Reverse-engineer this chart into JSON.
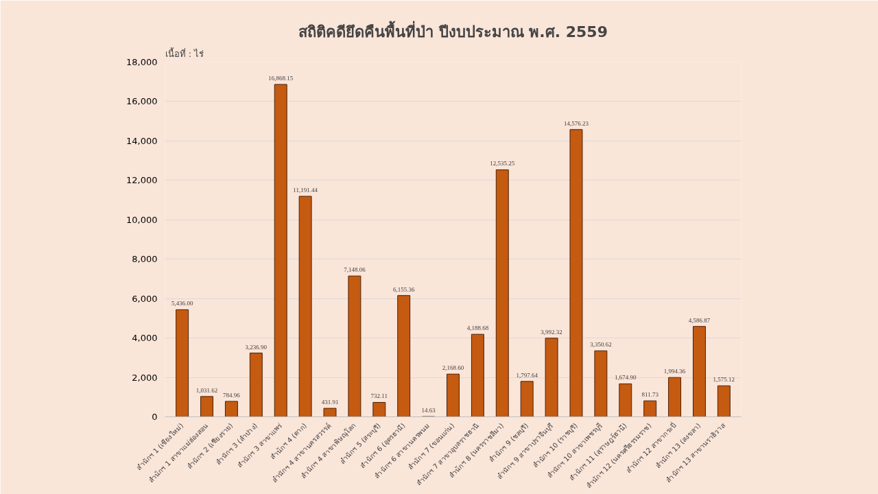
{
  "chart_data": {
    "type": "bar",
    "title": "สถิติคดียึดคืนพื้นที่ป่า ปีงบประมาณ พ.ศ. 2559",
    "ylabel": "เนื้อที่ : ไร่",
    "categories": [
      "สำนักฯ 1 (เชียงใหม่)",
      "สำนักฯ 1 สาขาแม่ฮ่องสอน",
      "สำนักฯ 2 (เชียงราย)",
      "สำนักฯ 3 (ลำปาง)",
      "สำนักฯ 3 สาขาแพร่",
      "สำนักฯ 4 (ตาก)",
      "สำนักฯ 4 สาขานครสวรรค์",
      "สำนักฯ 4 สาขาพิษณุโลก",
      "สำนักฯ 5 (สระบุรี)",
      "สำนักฯ 6 (อุดรธานี)",
      "สำนักฯ 6 สาขานครพนม",
      "สำนักฯ 7 (ขอนแก่น)",
      "สำนักฯ 7 สาขาอุบลราชธานี",
      "สำนักฯ 8 (นครราชสีมา)",
      "สำนักฯ 9 (ชลบุรี)",
      "สำนักฯ 9 สาขาปราจีนบุรี",
      "สำนักฯ 10 (ราชบุรี)",
      "สำนักฯ 10 สาขาเพชรบุรี",
      "สำนักฯ 11 (สุราษฎร์ธานี)",
      "สำนักฯ 12 (นครศรีธรรมราช)",
      "สำนักฯ 12 สาขากระบี่",
      "สำนักฯ 13 (สงขลา)",
      "สำนักฯ 13 สาขานราธิวาส"
    ],
    "values": [
      5436.0,
      1031.62,
      784.96,
      3236.9,
      16868.15,
      11191.44,
      431.91,
      7148.06,
      732.11,
      6155.36,
      14.63,
      2168.6,
      4188.68,
      12535.25,
      1797.64,
      3992.32,
      14576.23,
      3350.62,
      1674.9,
      811.73,
      1994.36,
      4586.87,
      1575.12
    ],
    "value_labels": [
      "5,436.00",
      "1,031.62",
      "784.96",
      "3,236.90",
      "16,868.15",
      "11,191.44",
      "431.91",
      "7,148.06",
      "732.11",
      "6,155.36",
      "14.63",
      "2,168.60",
      "4,188.68",
      "12,535.25",
      "1,797.64",
      "3,992.32",
      "14,576.23",
      "3,350.62",
      "1,674.90",
      "811.73",
      "1,994.36",
      "4,586.87",
      "1,575.12"
    ],
    "color": "#c55a11",
    "ylim": [
      0,
      18000
    ],
    "yticks": [
      0,
      {
        "value": 2000,
        "label": "2,000"
      },
      {
        "value": 4000,
        "label": "4,000"
      },
      {
        "value": 6000,
        "label": "6,000"
      },
      {
        "value": 8000,
        "label": "8,000"
      },
      {
        "value": 10000,
        "label": "10,000"
      },
      {
        "value": 12000,
        "label": "12,000"
      },
      {
        "value": 14000,
        "label": "14,000"
      },
      {
        "value": 16000,
        "label": "16,000"
      },
      {
        "value": 18000,
        "label": "18,000"
      }
    ],
    "grid": "y"
  }
}
